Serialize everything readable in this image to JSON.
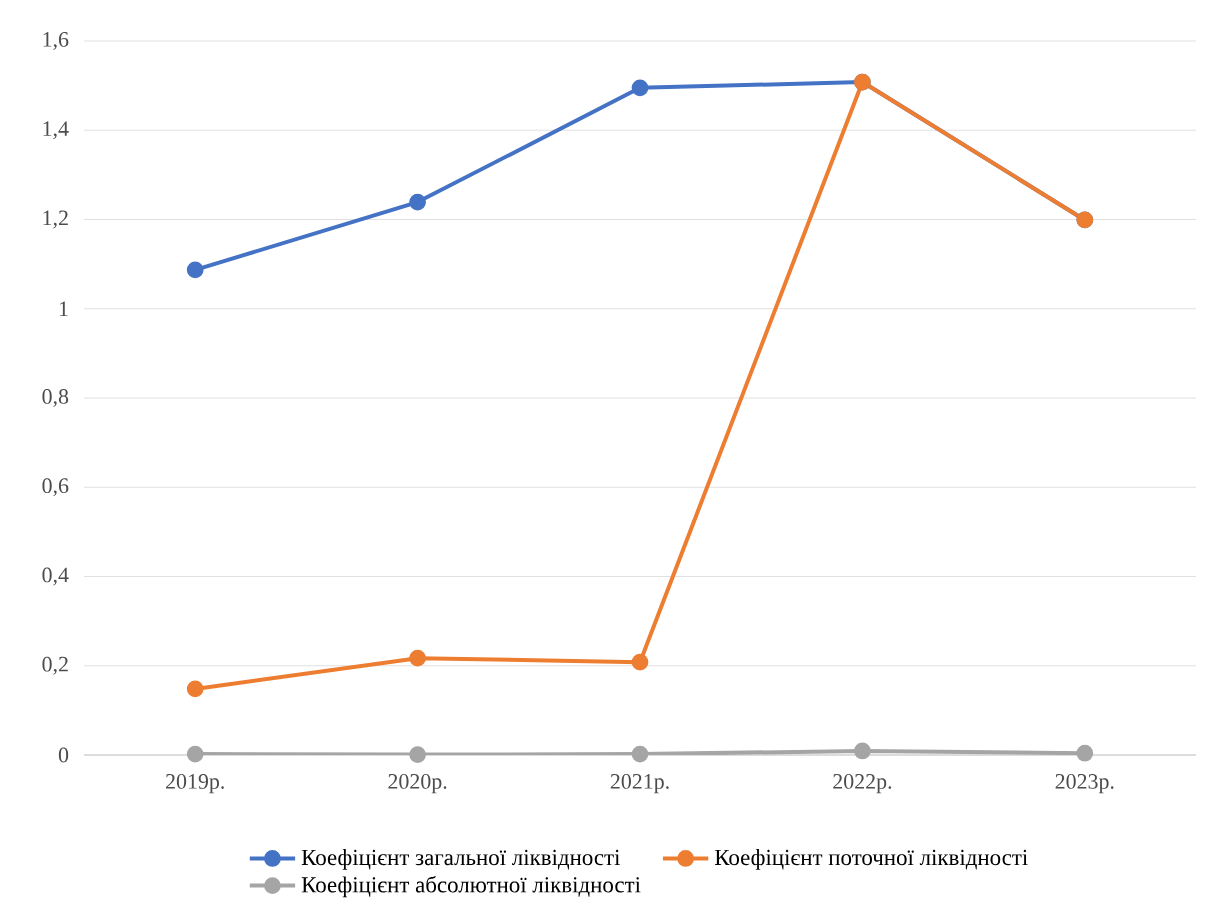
{
  "chart_data": {
    "type": "line",
    "categories": [
      "2019р.",
      "2020р.",
      "2021р.",
      "2022р.",
      "2023р."
    ],
    "series": [
      {
        "name": "Коефіцієнт загальної ліквідності",
        "color": "#4472c4",
        "values": [
          1.087,
          1.239,
          1.495,
          1.508,
          1.199
        ]
      },
      {
        "name": "Коефіцієнт поточної ліквідності",
        "color": "#ed7d31",
        "values": [
          0.148,
          0.217,
          0.208,
          1.508,
          1.199
        ]
      },
      {
        "name": "Коефіцієнт абсолютної ліквідності",
        "color": "#a5a5a5",
        "values": [
          0.002,
          0.001,
          0.002,
          0.009,
          0.004
        ]
      }
    ],
    "ylim": [
      0,
      1.6
    ],
    "yticks": [
      0,
      {
        "value": 0.2,
        "label": "0,2"
      },
      {
        "value": 0.4,
        "label": "0,4"
      },
      {
        "value": 0.6,
        "label": "0,6"
      },
      {
        "value": 0.8,
        "label": "0,8"
      },
      1,
      {
        "value": 1.2,
        "label": "1,2"
      },
      {
        "value": 1.4,
        "label": "1,4"
      },
      {
        "value": 1.6,
        "label": "1,6"
      }
    ],
    "grid": "y",
    "legend": "bottom",
    "marker": "circle",
    "line_style": "solid"
  }
}
